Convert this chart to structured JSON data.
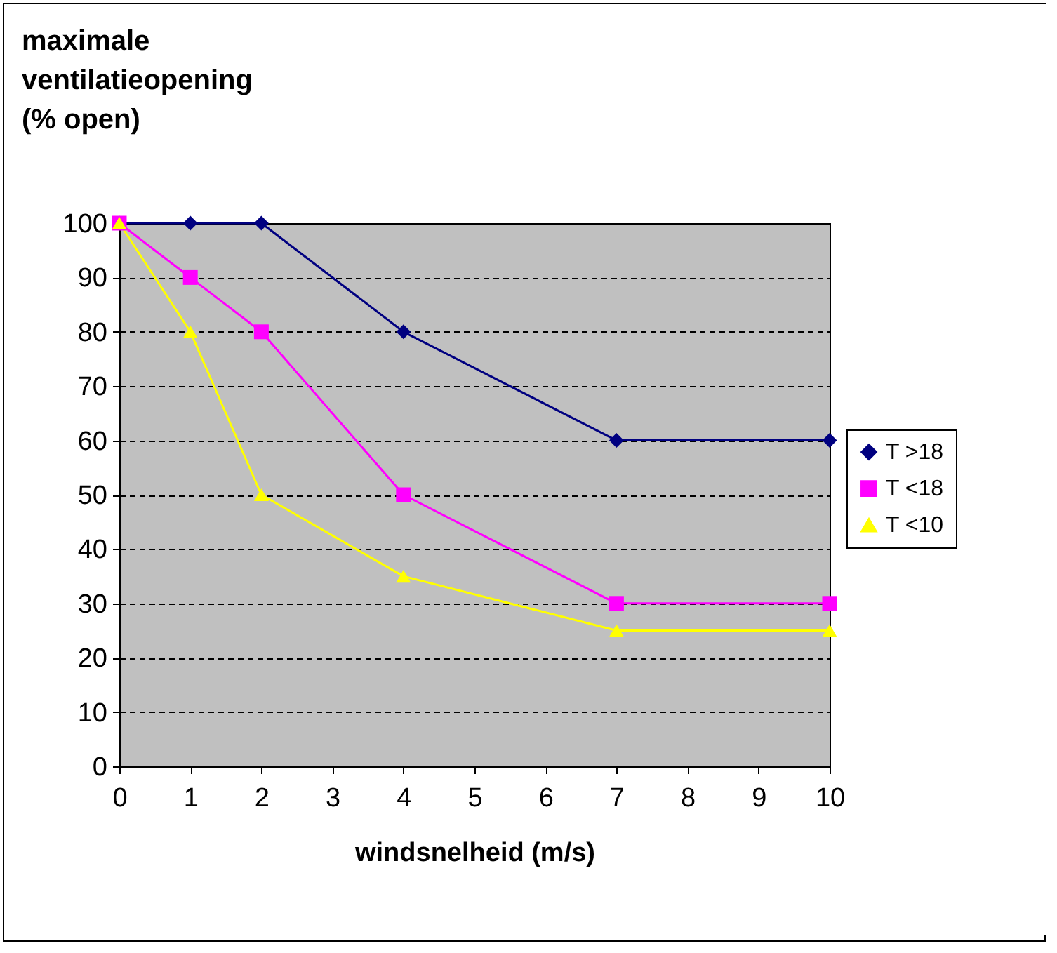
{
  "chart_data": {
    "type": "line",
    "ylabel": "maximale ventilatieopening (% open)",
    "xlabel": "windsnelheid (m/s)",
    "x": [
      0,
      1,
      2,
      4,
      7,
      10
    ],
    "series": [
      {
        "name": "T >18",
        "color": "#000080",
        "marker": "diamond",
        "values": [
          100,
          100,
          100,
          80,
          60,
          60
        ]
      },
      {
        "name": "T <18",
        "color": "#ff00ff",
        "marker": "square",
        "values": [
          100,
          90,
          80,
          50,
          30,
          30
        ]
      },
      {
        "name": "T <10",
        "color": "#ffff00",
        "marker": "triangle",
        "values": [
          100,
          80,
          50,
          35,
          25,
          25
        ]
      }
    ],
    "xlim": [
      0,
      10
    ],
    "xticks": [
      0,
      1,
      2,
      3,
      4,
      5,
      6,
      7,
      8,
      9,
      10
    ],
    "ylim": [
      0,
      100
    ],
    "yticks": [
      0,
      10,
      20,
      30,
      40,
      50,
      60,
      70,
      80,
      90,
      100
    ],
    "grid": "y",
    "legend": "right",
    "line_style": "solid"
  }
}
